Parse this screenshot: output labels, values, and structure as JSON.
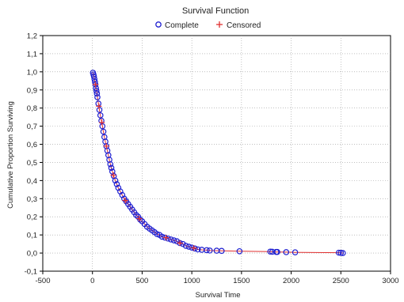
{
  "chart_data": {
    "type": "scatter",
    "title": "Survival Function",
    "xlabel": "Survival Time",
    "ylabel": "Cumulative Proportion Surviving",
    "xlim": [
      -500,
      3000
    ],
    "ylim": [
      -0.1,
      1.2
    ],
    "x_ticks": [
      -500,
      0,
      500,
      1000,
      1500,
      2000,
      2500,
      3000
    ],
    "x_tick_labels": [
      "-500",
      "0",
      "500",
      "1000",
      "1500",
      "2000",
      "2500",
      "3000"
    ],
    "y_ticks": [
      -0.1,
      0.0,
      0.1,
      0.2,
      0.3,
      0.4,
      0.5,
      0.6,
      0.7,
      0.8,
      0.9,
      1.0,
      1.1,
      1.2
    ],
    "y_tick_labels": [
      "-0,1",
      "0,0",
      "0,1",
      "0,2",
      "0,3",
      "0,4",
      "0,5",
      "0,6",
      "0,7",
      "0,8",
      "0,9",
      "1,0",
      "1,1",
      "1,2"
    ],
    "grid": true,
    "legend_position": "top-center",
    "series": [
      {
        "name": "Complete",
        "marker": "circle",
        "color": "#2020d0",
        "x": [
          5,
          10,
          15,
          20,
          25,
          30,
          35,
          40,
          45,
          50,
          60,
          70,
          80,
          90,
          100,
          110,
          120,
          130,
          140,
          150,
          160,
          170,
          180,
          190,
          200,
          215,
          230,
          245,
          260,
          280,
          300,
          320,
          340,
          360,
          380,
          400,
          420,
          440,
          460,
          480,
          500,
          525,
          550,
          575,
          600,
          625,
          650,
          675,
          700,
          730,
          760,
          790,
          820,
          850,
          880,
          910,
          940,
          970,
          1000,
          1030,
          1060,
          1100,
          1150,
          1180,
          1250,
          1300,
          1480,
          1790,
          1810,
          1850,
          1860,
          1950,
          2040,
          2480,
          2500,
          2520
        ],
        "y": [
          0.995,
          0.985,
          0.975,
          0.96,
          0.945,
          0.93,
          0.91,
          0.895,
          0.88,
          0.86,
          0.825,
          0.79,
          0.76,
          0.73,
          0.7,
          0.67,
          0.64,
          0.615,
          0.59,
          0.565,
          0.54,
          0.515,
          0.49,
          0.47,
          0.45,
          0.425,
          0.4,
          0.38,
          0.36,
          0.34,
          0.32,
          0.3,
          0.285,
          0.27,
          0.255,
          0.24,
          0.225,
          0.21,
          0.2,
          0.185,
          0.175,
          0.16,
          0.145,
          0.135,
          0.125,
          0.115,
          0.105,
          0.1,
          0.09,
          0.085,
          0.08,
          0.075,
          0.07,
          0.065,
          0.055,
          0.05,
          0.04,
          0.035,
          0.03,
          0.025,
          0.02,
          0.018,
          0.016,
          0.014,
          0.013,
          0.012,
          0.01,
          0.008,
          0.007,
          0.006,
          0.006,
          0.005,
          0.004,
          0.002,
          0.001,
          0.0
        ]
      },
      {
        "name": "Censored",
        "marker": "plus",
        "color": "#e03030",
        "x": [
          30,
          65,
          95,
          140,
          210,
          330,
          470,
          740,
          880,
          1020
        ],
        "y": [
          0.93,
          0.81,
          0.72,
          0.59,
          0.43,
          0.29,
          0.19,
          0.085,
          0.055,
          0.028
        ]
      }
    ]
  }
}
